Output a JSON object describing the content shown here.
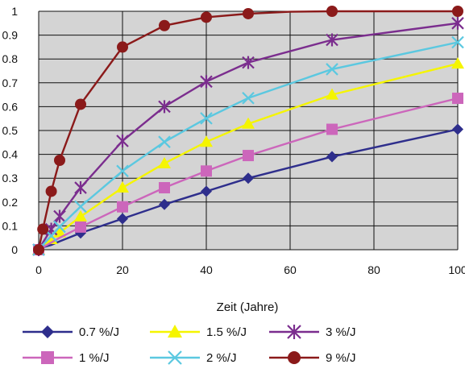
{
  "chart_data": {
    "type": "line",
    "title": "",
    "xlabel": "Zeit (Jahre)",
    "ylabel": "",
    "xlim": [
      0,
      100
    ],
    "ylim": [
      0,
      1
    ],
    "x_ticks": [
      "0",
      "20",
      "40",
      "60",
      "80",
      "100"
    ],
    "y_ticks": [
      "0",
      "0.1",
      "0.2",
      "0.3",
      "0.4",
      "0.5",
      "0.6",
      "0.7",
      "0.8",
      "0.9",
      "1"
    ],
    "grid": true,
    "plot_background": "#d4d4d4",
    "legend_position": "bottom",
    "series": [
      {
        "name": "0.7 %/J",
        "color": "#2e2e8c",
        "marker": "diamond",
        "x": [
          0,
          1,
          3,
          5,
          10,
          20,
          30,
          40,
          50,
          70,
          100
        ],
        "y": [
          0.0,
          0.01,
          0.02,
          0.035,
          0.07,
          0.13,
          0.19,
          0.245,
          0.3,
          0.39,
          0.505
        ],
        "marker_x": [
          0,
          10,
          20,
          30,
          40,
          50,
          70,
          100
        ]
      },
      {
        "name": "1.5 %/J",
        "color": "#f5f500",
        "marker": "triangle",
        "x": [
          0,
          1,
          3,
          5,
          10,
          20,
          30,
          40,
          50,
          70,
          100
        ],
        "y": [
          0.0,
          0.015,
          0.044,
          0.072,
          0.139,
          0.26,
          0.362,
          0.452,
          0.528,
          0.65,
          0.78
        ],
        "marker_x": [
          0,
          3,
          5,
          10,
          20,
          30,
          40,
          50,
          70,
          100
        ]
      },
      {
        "name": "3 %/J",
        "color": "#7b2d8e",
        "marker": "asterisk",
        "x": [
          0,
          1,
          3,
          5,
          10,
          20,
          30,
          40,
          50,
          70,
          100
        ],
        "y": [
          0.0,
          0.03,
          0.086,
          0.14,
          0.26,
          0.456,
          0.6,
          0.705,
          0.785,
          0.88,
          0.95
        ],
        "marker_x": [
          0,
          3,
          5,
          10,
          20,
          30,
          40,
          50,
          70,
          100
        ]
      },
      {
        "name": "1 %/J",
        "color": "#cc66bb",
        "marker": "square",
        "x": [
          0,
          1,
          3,
          5,
          10,
          20,
          30,
          40,
          50,
          70,
          100
        ],
        "y": [
          0.0,
          0.01,
          0.03,
          0.05,
          0.095,
          0.18,
          0.26,
          0.33,
          0.395,
          0.505,
          0.635
        ],
        "marker_x": [
          0,
          10,
          20,
          30,
          40,
          50,
          70,
          100
        ]
      },
      {
        "name": "2 %/J",
        "color": "#5bc8e0",
        "marker": "x",
        "x": [
          0,
          1,
          3,
          5,
          10,
          20,
          30,
          40,
          50,
          70,
          100
        ],
        "y": [
          0.0,
          0.02,
          0.058,
          0.096,
          0.181,
          0.33,
          0.452,
          0.551,
          0.636,
          0.757,
          0.87
        ],
        "marker_x": [
          0,
          3,
          5,
          10,
          20,
          30,
          40,
          50,
          70,
          100
        ]
      },
      {
        "name": "9 %/J",
        "color": "#8b1a1a",
        "marker": "circle",
        "x": [
          0,
          1,
          3,
          5,
          10,
          20,
          30,
          40,
          50,
          60,
          70,
          100
        ],
        "y": [
          0.0,
          0.086,
          0.245,
          0.375,
          0.61,
          0.85,
          0.94,
          0.975,
          0.99,
          0.998,
          1.0,
          1.0
        ],
        "marker_x": [
          0,
          1,
          3,
          5,
          10,
          20,
          30,
          40,
          50,
          70,
          100
        ]
      }
    ]
  },
  "legend_rows": [
    [
      "0.7 %/J",
      "1.5 %/J",
      "3 %/J"
    ],
    [
      "1 %/J",
      "2 %/J",
      "9 %/J"
    ]
  ]
}
